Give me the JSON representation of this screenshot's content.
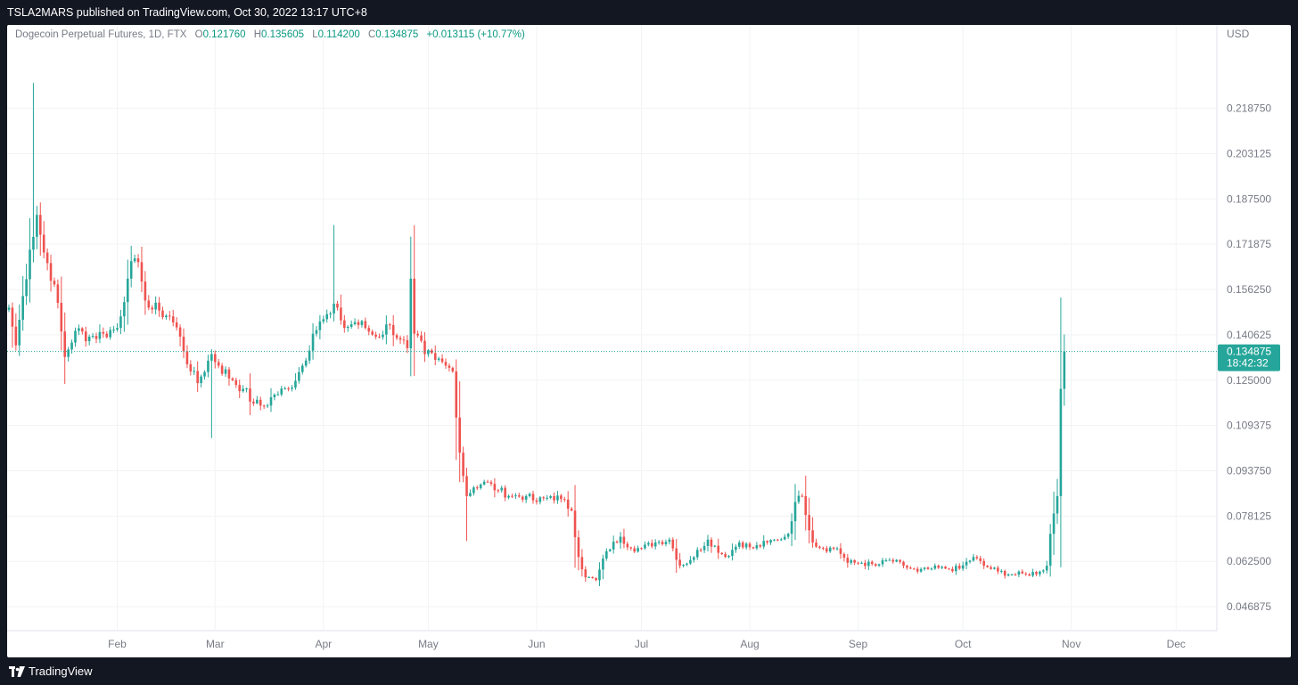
{
  "header": {
    "published_text": "TSLA2MARS published on TradingView.com, Oct 30, 2022 13:17 UTC+8"
  },
  "footer": {
    "brand": "TradingView"
  },
  "legend": {
    "symbol": "Dogecoin Perpetual Futures, 1D, FTX",
    "o_label": "O",
    "o_value": "0.121760",
    "h_label": "H",
    "h_value": "0.135605",
    "l_label": "L",
    "l_value": "0.114200",
    "c_label": "C",
    "c_value": "0.134875",
    "change": "+0.013115 (+10.77%)"
  },
  "price_badge": {
    "price": "0.134875",
    "countdown": "18:42:32"
  },
  "colors": {
    "up": "#26a69a",
    "down": "#ef5350",
    "grid": "#f2f3f5",
    "axis_text": "#787b86",
    "badge": "#26a69a"
  },
  "chart_data": {
    "type": "candlestick",
    "currency_label": "USD",
    "y_ticks": [
      "0.218750",
      "0.203125",
      "0.187500",
      "0.171875",
      "0.156250",
      "0.140625",
      "0.125000",
      "0.109375",
      "0.093750",
      "0.078125",
      "0.062500",
      "0.046875"
    ],
    "x_ticks": [
      "Feb",
      "Mar",
      "Apr",
      "May",
      "Jun",
      "Jul",
      "Aug",
      "Sep",
      "Oct",
      "Nov",
      "Dec"
    ],
    "ylim": [
      0.0386,
      0.2475
    ],
    "current_price": 0.134875,
    "anchors": [
      [
        "2022-01-01",
        0.15
      ],
      [
        "2022-01-03",
        0.137
      ],
      [
        "2022-01-05",
        0.154
      ],
      [
        "2022-01-07",
        0.17
      ],
      [
        "2022-01-09",
        0.182
      ],
      [
        "2022-01-11",
        0.169
      ],
      [
        "2022-01-14",
        0.158
      ],
      [
        "2022-01-17",
        0.133
      ],
      [
        "2022-01-20",
        0.142
      ],
      [
        "2022-01-24",
        0.14
      ],
      [
        "2022-01-28",
        0.141
      ],
      [
        "2022-02-01",
        0.143
      ],
      [
        "2022-02-04",
        0.16
      ],
      [
        "2022-02-06",
        0.167
      ],
      [
        "2022-02-08",
        0.159
      ],
      [
        "2022-02-10",
        0.15
      ],
      [
        "2022-02-13",
        0.149
      ],
      [
        "2022-02-16",
        0.147
      ],
      [
        "2022-02-19",
        0.14
      ],
      [
        "2022-02-22",
        0.128
      ],
      [
        "2022-02-24",
        0.124
      ],
      [
        "2022-02-28",
        0.134
      ],
      [
        "2022-03-02",
        0.13
      ],
      [
        "2022-03-06",
        0.125
      ],
      [
        "2022-03-09",
        0.122
      ],
      [
        "2022-03-12",
        0.117
      ],
      [
        "2022-03-15",
        0.116
      ],
      [
        "2022-03-18",
        0.12
      ],
      [
        "2022-03-22",
        0.122
      ],
      [
        "2022-03-26",
        0.13
      ],
      [
        "2022-03-29",
        0.141
      ],
      [
        "2022-04-01",
        0.146
      ],
      [
        "2022-04-03",
        0.148
      ],
      [
        "2022-04-05",
        0.15
      ],
      [
        "2022-04-07",
        0.143
      ],
      [
        "2022-04-10",
        0.145
      ],
      [
        "2022-04-13",
        0.143
      ],
      [
        "2022-04-16",
        0.14
      ],
      [
        "2022-04-20",
        0.144
      ],
      [
        "2022-04-23",
        0.139
      ],
      [
        "2022-04-25",
        0.136
      ],
      [
        "2022-04-26",
        0.16
      ],
      [
        "2022-04-27",
        0.141
      ],
      [
        "2022-04-30",
        0.134
      ],
      [
        "2022-05-03",
        0.132
      ],
      [
        "2022-05-06",
        0.13
      ],
      [
        "2022-05-08",
        0.128
      ],
      [
        "2022-05-10",
        0.1
      ],
      [
        "2022-05-12",
        0.085
      ],
      [
        "2022-05-14",
        0.088
      ],
      [
        "2022-05-17",
        0.09
      ],
      [
        "2022-05-21",
        0.087
      ],
      [
        "2022-05-25",
        0.085
      ],
      [
        "2022-05-29",
        0.085
      ],
      [
        "2022-06-01",
        0.083
      ],
      [
        "2022-06-05",
        0.085
      ],
      [
        "2022-06-08",
        0.084
      ],
      [
        "2022-06-11",
        0.08
      ],
      [
        "2022-06-13",
        0.064
      ],
      [
        "2022-06-15",
        0.057
      ],
      [
        "2022-06-18",
        0.056
      ],
      [
        "2022-06-21",
        0.066
      ],
      [
        "2022-06-25",
        0.071
      ],
      [
        "2022-06-28",
        0.067
      ],
      [
        "2022-07-01",
        0.067
      ],
      [
        "2022-07-05",
        0.069
      ],
      [
        "2022-07-09",
        0.07
      ],
      [
        "2022-07-12",
        0.061
      ],
      [
        "2022-07-15",
        0.063
      ],
      [
        "2022-07-20",
        0.07
      ],
      [
        "2022-07-25",
        0.064
      ],
      [
        "2022-07-29",
        0.069
      ],
      [
        "2022-08-02",
        0.067
      ],
      [
        "2022-08-06",
        0.069
      ],
      [
        "2022-08-09",
        0.07
      ],
      [
        "2022-08-12",
        0.072
      ],
      [
        "2022-08-14",
        0.083
      ],
      [
        "2022-08-16",
        0.085
      ],
      [
        "2022-08-19",
        0.069
      ],
      [
        "2022-08-22",
        0.067
      ],
      [
        "2022-08-26",
        0.067
      ],
      [
        "2022-08-29",
        0.062
      ],
      [
        "2022-09-02",
        0.062
      ],
      [
        "2022-09-06",
        0.061
      ],
      [
        "2022-09-10",
        0.063
      ],
      [
        "2022-09-14",
        0.061
      ],
      [
        "2022-09-18",
        0.059
      ],
      [
        "2022-09-22",
        0.06
      ],
      [
        "2022-09-26",
        0.06
      ],
      [
        "2022-09-30",
        0.06
      ],
      [
        "2022-10-04",
        0.064
      ],
      [
        "2022-10-07",
        0.061
      ],
      [
        "2022-10-11",
        0.059
      ],
      [
        "2022-10-15",
        0.058
      ],
      [
        "2022-10-19",
        0.058
      ],
      [
        "2022-10-23",
        0.059
      ],
      [
        "2022-10-25",
        0.061
      ],
      [
        "2022-10-26",
        0.072
      ],
      [
        "2022-10-27",
        0.079
      ],
      [
        "2022-10-28",
        0.085
      ],
      [
        "2022-10-29",
        0.122
      ],
      [
        "2022-10-30",
        0.134875
      ]
    ]
  }
}
